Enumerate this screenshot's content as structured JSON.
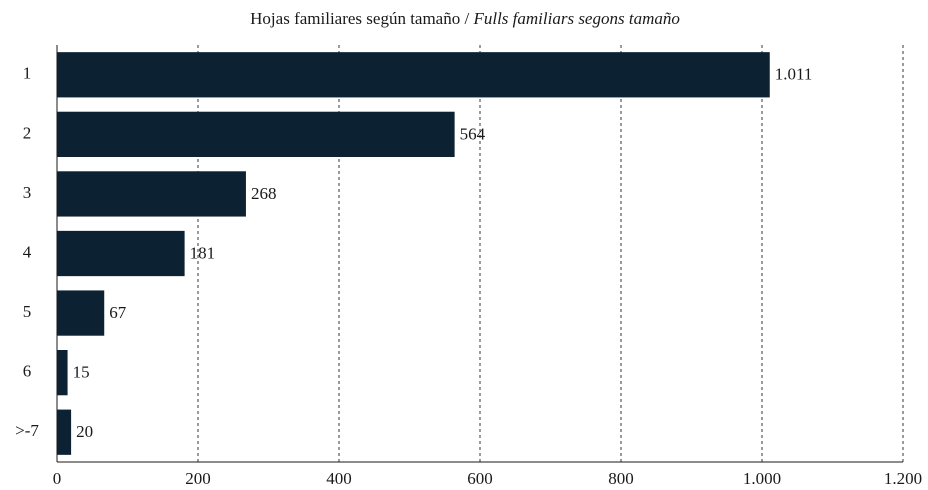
{
  "chart_data": {
    "type": "bar",
    "orientation": "horizontal",
    "title": [
      "Hojas familiares según tamaño /",
      "Fulls familiars segons tamaño"
    ],
    "categories": [
      "1",
      "2",
      "3",
      "4",
      "5",
      "6",
      ">-7"
    ],
    "values": [
      1011,
      564,
      268,
      181,
      67,
      15,
      20
    ],
    "value_labels": [
      "1.011",
      "564",
      "268",
      "181",
      "67",
      "15",
      "20"
    ],
    "color": "#0c2233",
    "xlim": [
      0,
      1200
    ],
    "xticks": [
      0,
      200,
      400,
      600,
      800,
      {
        "value": 1000,
        "label": "1.000"
      },
      {
        "value": 1200,
        "label": "1.200"
      }
    ],
    "grid": true
  }
}
